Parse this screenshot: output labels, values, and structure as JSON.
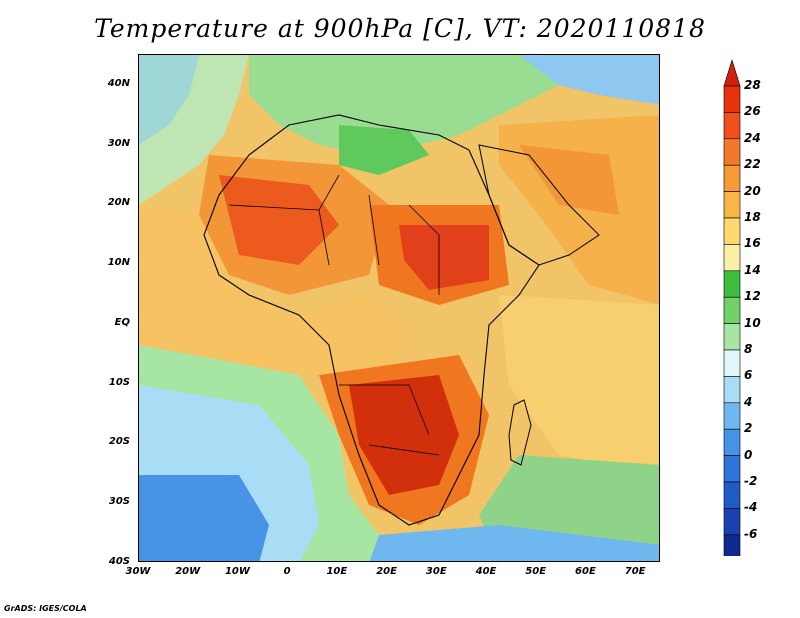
{
  "title": "Temperature at 900hPa [C], VT: 2020110818",
  "footer": "GrADS: IGES/COLA",
  "map": {
    "projection": "latlon",
    "lon_range": [
      -30,
      75
    ],
    "lat_range": [
      -40,
      45
    ],
    "lat_ticks": [
      {
        "value": 40,
        "label": "40N"
      },
      {
        "value": 30,
        "label": "30N"
      },
      {
        "value": 20,
        "label": "20N"
      },
      {
        "value": 10,
        "label": "10N"
      },
      {
        "value": 0,
        "label": "EQ"
      },
      {
        "value": -10,
        "label": "10S"
      },
      {
        "value": -20,
        "label": "20S"
      },
      {
        "value": -30,
        "label": "30S"
      },
      {
        "value": -40,
        "label": "40S"
      }
    ],
    "lon_ticks": [
      {
        "value": -30,
        "label": "30W"
      },
      {
        "value": -20,
        "label": "20W"
      },
      {
        "value": -10,
        "label": "10W"
      },
      {
        "value": 0,
        "label": "0"
      },
      {
        "value": 10,
        "label": "10E"
      },
      {
        "value": 20,
        "label": "20E"
      },
      {
        "value": 30,
        "label": "30E"
      },
      {
        "value": 40,
        "label": "40E"
      },
      {
        "value": 50,
        "label": "50E"
      },
      {
        "value": 60,
        "label": "60E"
      },
      {
        "value": 70,
        "label": "70E"
      }
    ]
  },
  "colorbar": {
    "levels": [
      {
        "label": "28",
        "color": "#e8320c"
      },
      {
        "label": "26",
        "color": "#f0501c"
      },
      {
        "label": "24",
        "color": "#f4782a"
      },
      {
        "label": "22",
        "color": "#f79a38"
      },
      {
        "label": "20",
        "color": "#f8b748"
      },
      {
        "label": "18",
        "color": "#fbd870"
      },
      {
        "label": "16",
        "color": "#f9f2a6"
      },
      {
        "label": "14",
        "color": "#3dbe3d"
      },
      {
        "label": "12",
        "color": "#72d168"
      },
      {
        "label": "10",
        "color": "#a7e6a2"
      },
      {
        "label": "8",
        "color": "#e1f7fb"
      },
      {
        "label": "6",
        "color": "#a8ddf5"
      },
      {
        "label": "4",
        "color": "#6fb7ef"
      },
      {
        "label": "2",
        "color": "#4793e6"
      },
      {
        "label": "0",
        "color": "#2f74d8"
      },
      {
        "label": "-2",
        "color": "#1f5ac6"
      },
      {
        "label": "-4",
        "color": "#1742b0"
      },
      {
        "label": "-6",
        "color": "#0d2a8c"
      }
    ],
    "top_arrow_color": "#d2200a",
    "bottom_arrow_color": "#dde2f7"
  },
  "field": {
    "units": "C",
    "regions": [
      {
        "name": "sahel-west-max",
        "value": 26
      },
      {
        "name": "sahel-east-max",
        "value": 26
      },
      {
        "name": "southern-africa-max",
        "value": 28
      },
      {
        "name": "mediterranean",
        "value": 14
      },
      {
        "name": "southern-ocean",
        "value": 2
      }
    ]
  }
}
